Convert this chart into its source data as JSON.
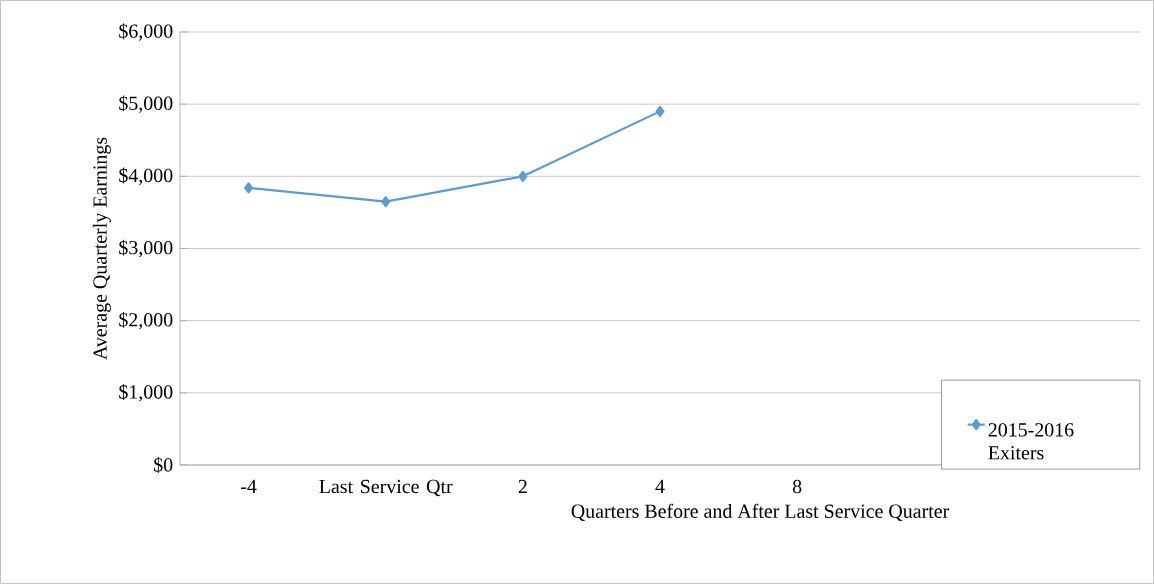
{
  "chart_data": {
    "type": "line",
    "xlabel": "Quarters Before and After Last Service Quarter",
    "ylabel": "Average Quarterly Earnings",
    "categories": [
      "-4",
      "Last Service Qtr",
      "2",
      "4",
      "8",
      null,
      null
    ],
    "series": [
      {
        "name": "2015-2016 Exiters",
        "color": "#5b9bd5",
        "values": [
          3840,
          3650,
          4000,
          4900,
          null,
          null,
          null
        ]
      }
    ],
    "ylim": [
      0,
      6000
    ],
    "yticks": [
      {
        "value": 0,
        "label": "$0"
      },
      {
        "value": 1000,
        "label": "$1,000"
      },
      {
        "value": 2000,
        "label": "$2,000"
      },
      {
        "value": 3000,
        "label": "$3,000"
      },
      {
        "value": 4000,
        "label": "$4,000"
      },
      {
        "value": 5000,
        "label": "$5,000"
      },
      {
        "value": 6000,
        "label": "$6,000"
      }
    ],
    "grid": "y",
    "legend": "right",
    "marker": "diamond",
    "line_style": "solid"
  }
}
